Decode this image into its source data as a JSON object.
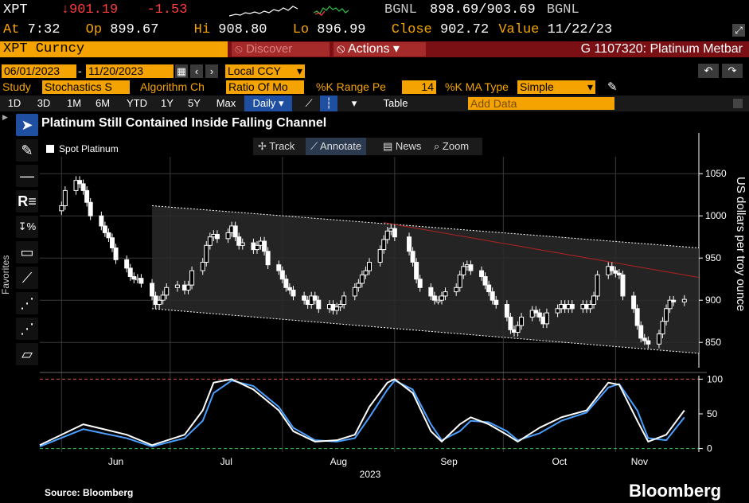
{
  "quote": {
    "symbol": "XPT",
    "arrow": "↓",
    "last": "901.19",
    "change": "-1.53",
    "source1": "BGNL",
    "bid": "898.69",
    "sep": "/",
    "ask": "903.69",
    "source2": "BGNL",
    "at_label": "At",
    "at_time": "7:32",
    "op_label": "Op",
    "open": "899.67",
    "hi_label": "Hi",
    "high": "908.80",
    "lo_label": "Lo",
    "low": "896.99",
    "close_label": "Close",
    "close": "902.72",
    "value_label": "Value",
    "value_date": "11/22/23"
  },
  "command": {
    "ticker": "XPT Curncy",
    "discover": "Discover",
    "actions": "Actions",
    "graph_title": "G 1107320: Platinum Metbar"
  },
  "params": {
    "start_date": "06/01/2023",
    "dash": "-",
    "end_date": "11/20/2023",
    "currency": "Local CCY",
    "study_label": "Study",
    "study_value": "Stochastics S",
    "algo_label": "Algorithm Ch",
    "algo_value": "Ratio Of Mo",
    "krange_label": "%K Range Pe",
    "krange_value": "14",
    "kma_label": "%K MA Type",
    "kma_value": "Simple"
  },
  "ranges": [
    "1D",
    "3D",
    "1M",
    "6M",
    "YTD",
    "1Y",
    "5Y",
    "Max"
  ],
  "period": "Daily",
  "table_label": "Table",
  "add_data_placeholder": "Add Data",
  "favorites_label": "Favorites",
  "chart_toolbar": {
    "track": "Track",
    "annotate": "Annotate",
    "news": "News",
    "zoom": "Zoom"
  },
  "footer": {
    "source": "Source: Bloomberg",
    "brand": "Bloomberg"
  },
  "colors": {
    "accent_orange": "#f5a300",
    "command_red": "#7a0f14",
    "stoch_k": "#ffffff",
    "stoch_d": "#4a9fff",
    "resistance_line": "#b22222"
  },
  "chart_data": [
    {
      "type": "candlestick",
      "title": "Platinum Still Contained Inside Falling Channel",
      "legend": [
        "Spot Platinum"
      ],
      "ylabel": "US dollars per troy ounce",
      "ylim": [
        820,
        1070
      ],
      "yticks": [
        850,
        900,
        950,
        1000,
        1050
      ],
      "x_tick_labels": [
        "Jun",
        "Jul",
        "Aug",
        "Sep",
        "Oct",
        "Nov"
      ],
      "year_label": "2023",
      "x_range": [
        "2023-05-26",
        "2023-11-24"
      ],
      "series_daily_close": [
        {
          "date": "2023-06-01",
          "close": 1012
        },
        {
          "date": "2023-06-02",
          "close": 1030
        },
        {
          "date": "2023-06-05",
          "close": 1042
        },
        {
          "date": "2023-06-06",
          "close": 1038
        },
        {
          "date": "2023-06-07",
          "close": 1030
        },
        {
          "date": "2023-06-08",
          "close": 1016
        },
        {
          "date": "2023-06-09",
          "close": 1000
        },
        {
          "date": "2023-06-12",
          "close": 988
        },
        {
          "date": "2023-06-13",
          "close": 980
        },
        {
          "date": "2023-06-14",
          "close": 974
        },
        {
          "date": "2023-06-15",
          "close": 962
        },
        {
          "date": "2023-06-16",
          "close": 948
        },
        {
          "date": "2023-06-19",
          "close": 938
        },
        {
          "date": "2023-06-20",
          "close": 928
        },
        {
          "date": "2023-06-21",
          "close": 925
        },
        {
          "date": "2023-06-22",
          "close": 926
        },
        {
          "date": "2023-06-23",
          "close": 920
        },
        {
          "date": "2023-06-26",
          "close": 905
        },
        {
          "date": "2023-06-27",
          "close": 895
        },
        {
          "date": "2023-06-28",
          "close": 900
        },
        {
          "date": "2023-06-29",
          "close": 906
        },
        {
          "date": "2023-06-30",
          "close": 915
        },
        {
          "date": "2023-07-03",
          "close": 918
        },
        {
          "date": "2023-07-05",
          "close": 912
        },
        {
          "date": "2023-07-06",
          "close": 918
        },
        {
          "date": "2023-07-07",
          "close": 935
        },
        {
          "date": "2023-07-10",
          "close": 945
        },
        {
          "date": "2023-07-11",
          "close": 965
        },
        {
          "date": "2023-07-12",
          "close": 975
        },
        {
          "date": "2023-07-13",
          "close": 978
        },
        {
          "date": "2023-07-14",
          "close": 973
        },
        {
          "date": "2023-07-17",
          "close": 980
        },
        {
          "date": "2023-07-18",
          "close": 988
        },
        {
          "date": "2023-07-19",
          "close": 975
        },
        {
          "date": "2023-07-20",
          "close": 965
        },
        {
          "date": "2023-07-21",
          "close": 968
        },
        {
          "date": "2023-07-24",
          "close": 960
        },
        {
          "date": "2023-07-25",
          "close": 965
        },
        {
          "date": "2023-07-26",
          "close": 970
        },
        {
          "date": "2023-07-27",
          "close": 958
        },
        {
          "date": "2023-07-28",
          "close": 942
        },
        {
          "date": "2023-07-31",
          "close": 935
        },
        {
          "date": "2023-08-01",
          "close": 925
        },
        {
          "date": "2023-08-02",
          "close": 915
        },
        {
          "date": "2023-08-03",
          "close": 912
        },
        {
          "date": "2023-08-04",
          "close": 905
        },
        {
          "date": "2023-08-07",
          "close": 900
        },
        {
          "date": "2023-08-08",
          "close": 895
        },
        {
          "date": "2023-08-09",
          "close": 905
        },
        {
          "date": "2023-08-10",
          "close": 900
        },
        {
          "date": "2023-08-11",
          "close": 890
        },
        {
          "date": "2023-08-14",
          "close": 895
        },
        {
          "date": "2023-08-15",
          "close": 888
        },
        {
          "date": "2023-08-16",
          "close": 892
        },
        {
          "date": "2023-08-17",
          "close": 895
        },
        {
          "date": "2023-08-18",
          "close": 905
        },
        {
          "date": "2023-08-21",
          "close": 915
        },
        {
          "date": "2023-08-22",
          "close": 920
        },
        {
          "date": "2023-08-23",
          "close": 930
        },
        {
          "date": "2023-08-24",
          "close": 935
        },
        {
          "date": "2023-08-25",
          "close": 945
        },
        {
          "date": "2023-08-28",
          "close": 960
        },
        {
          "date": "2023-08-29",
          "close": 972
        },
        {
          "date": "2023-08-30",
          "close": 982
        },
        {
          "date": "2023-08-31",
          "close": 985
        },
        {
          "date": "2023-09-01",
          "close": 975
        },
        {
          "date": "2023-09-05",
          "close": 958
        },
        {
          "date": "2023-09-06",
          "close": 945
        },
        {
          "date": "2023-09-07",
          "close": 925
        },
        {
          "date": "2023-09-08",
          "close": 915
        },
        {
          "date": "2023-09-11",
          "close": 905
        },
        {
          "date": "2023-09-12",
          "close": 900
        },
        {
          "date": "2023-09-13",
          "close": 900
        },
        {
          "date": "2023-09-14",
          "close": 905
        },
        {
          "date": "2023-09-15",
          "close": 910
        },
        {
          "date": "2023-09-18",
          "close": 915
        },
        {
          "date": "2023-09-19",
          "close": 930
        },
        {
          "date": "2023-09-20",
          "close": 940
        },
        {
          "date": "2023-09-21",
          "close": 942
        },
        {
          "date": "2023-09-22",
          "close": 935
        },
        {
          "date": "2023-09-25",
          "close": 928
        },
        {
          "date": "2023-09-26",
          "close": 918
        },
        {
          "date": "2023-09-27",
          "close": 910
        },
        {
          "date": "2023-09-28",
          "close": 900
        },
        {
          "date": "2023-09-29",
          "close": 895
        },
        {
          "date": "2023-10-02",
          "close": 880
        },
        {
          "date": "2023-10-03",
          "close": 865
        },
        {
          "date": "2023-10-04",
          "close": 862
        },
        {
          "date": "2023-10-05",
          "close": 870
        },
        {
          "date": "2023-10-06",
          "close": 880
        },
        {
          "date": "2023-10-09",
          "close": 888
        },
        {
          "date": "2023-10-10",
          "close": 885
        },
        {
          "date": "2023-10-11",
          "close": 880
        },
        {
          "date": "2023-10-12",
          "close": 872
        },
        {
          "date": "2023-10-13",
          "close": 885
        },
        {
          "date": "2023-10-16",
          "close": 890
        },
        {
          "date": "2023-10-17",
          "close": 895
        },
        {
          "date": "2023-10-18",
          "close": 890
        },
        {
          "date": "2023-10-19",
          "close": 895
        },
        {
          "date": "2023-10-20",
          "close": 890
        },
        {
          "date": "2023-10-23",
          "close": 895
        },
        {
          "date": "2023-10-24",
          "close": 890
        },
        {
          "date": "2023-10-25",
          "close": 895
        },
        {
          "date": "2023-10-26",
          "close": 905
        },
        {
          "date": "2023-10-27",
          "close": 930
        },
        {
          "date": "2023-10-30",
          "close": 940
        },
        {
          "date": "2023-10-31",
          "close": 935
        },
        {
          "date": "2023-11-01",
          "close": 932
        },
        {
          "date": "2023-11-02",
          "close": 930
        },
        {
          "date": "2023-11-03",
          "close": 905
        },
        {
          "date": "2023-11-06",
          "close": 890
        },
        {
          "date": "2023-11-07",
          "close": 870
        },
        {
          "date": "2023-11-08",
          "close": 855
        },
        {
          "date": "2023-11-09",
          "close": 852
        },
        {
          "date": "2023-11-10",
          "close": 848
        },
        {
          "date": "2023-11-13",
          "close": 860
        },
        {
          "date": "2023-11-14",
          "close": 875
        },
        {
          "date": "2023-11-15",
          "close": 890
        },
        {
          "date": "2023-11-16",
          "close": 900
        },
        {
          "date": "2023-11-17",
          "close": 898
        },
        {
          "date": "2023-11-20",
          "close": 901
        }
      ],
      "channel": {
        "upper": [
          {
            "date": "2023-06-26",
            "value": 1012
          },
          {
            "date": "2023-11-24",
            "value": 962
          }
        ],
        "lower": [
          {
            "date": "2023-06-26",
            "value": 890
          },
          {
            "date": "2023-11-24",
            "value": 837
          }
        ]
      },
      "resistance_line": [
        {
          "date": "2023-08-29",
          "value": 992
        },
        {
          "date": "2023-11-24",
          "value": 927
        }
      ]
    },
    {
      "type": "line",
      "study": "Stochastics",
      "ylim": [
        -5,
        105
      ],
      "yticks": [
        0,
        50,
        100
      ],
      "reference_lines": [
        0,
        100
      ],
      "series": [
        {
          "points": [
            [
              "2023-05-26",
              5
            ],
            [
              "2023-06-07",
              35
            ],
            [
              "2023-06-19",
              20
            ],
            [
              "2023-06-26",
              5
            ],
            [
              "2023-07-05",
              20
            ],
            [
              "2023-07-10",
              55
            ],
            [
              "2023-07-13",
              95
            ],
            [
              "2023-07-18",
              100
            ],
            [
              "2023-07-24",
              85
            ],
            [
              "2023-07-31",
              55
            ],
            [
              "2023-08-04",
              25
            ],
            [
              "2023-08-10",
              10
            ],
            [
              "2023-08-16",
              12
            ],
            [
              "2023-08-21",
              20
            ],
            [
              "2023-08-25",
              60
            ],
            [
              "2023-08-30",
              95
            ],
            [
              "2023-09-01",
              100
            ],
            [
              "2023-09-06",
              80
            ],
            [
              "2023-09-11",
              25
            ],
            [
              "2023-09-14",
              10
            ],
            [
              "2023-09-19",
              35
            ],
            [
              "2023-09-22",
              45
            ],
            [
              "2023-09-27",
              35
            ],
            [
              "2023-10-02",
              20
            ],
            [
              "2023-10-05",
              10
            ],
            [
              "2023-10-11",
              30
            ],
            [
              "2023-10-17",
              45
            ],
            [
              "2023-10-24",
              55
            ],
            [
              "2023-10-30",
              95
            ],
            [
              "2023-11-02",
              92
            ],
            [
              "2023-11-07",
              40
            ],
            [
              "2023-11-10",
              10
            ],
            [
              "2023-11-15",
              20
            ],
            [
              "2023-11-20",
              55
            ]
          ]
        },
        {
          "points": [
            [
              "2023-05-26",
              3
            ],
            [
              "2023-06-07",
              28
            ],
            [
              "2023-06-19",
              15
            ],
            [
              "2023-06-26",
              3
            ],
            [
              "2023-07-05",
              15
            ],
            [
              "2023-07-10",
              40
            ],
            [
              "2023-07-13",
              80
            ],
            [
              "2023-07-18",
              98
            ],
            [
              "2023-07-24",
              90
            ],
            [
              "2023-07-31",
              60
            ],
            [
              "2023-08-04",
              30
            ],
            [
              "2023-08-10",
              12
            ],
            [
              "2023-08-16",
              10
            ],
            [
              "2023-08-21",
              15
            ],
            [
              "2023-08-25",
              45
            ],
            [
              "2023-08-30",
              85
            ],
            [
              "2023-09-01",
              98
            ],
            [
              "2023-09-06",
              85
            ],
            [
              "2023-09-11",
              35
            ],
            [
              "2023-09-14",
              12
            ],
            [
              "2023-09-19",
              25
            ],
            [
              "2023-09-22",
              40
            ],
            [
              "2023-09-27",
              38
            ],
            [
              "2023-10-02",
              25
            ],
            [
              "2023-10-05",
              12
            ],
            [
              "2023-10-11",
              22
            ],
            [
              "2023-10-17",
              40
            ],
            [
              "2023-10-24",
              52
            ],
            [
              "2023-10-30",
              88
            ],
            [
              "2023-11-02",
              93
            ],
            [
              "2023-11-07",
              55
            ],
            [
              "2023-11-10",
              15
            ],
            [
              "2023-11-15",
              12
            ],
            [
              "2023-11-20",
              45
            ]
          ]
        }
      ]
    }
  ]
}
